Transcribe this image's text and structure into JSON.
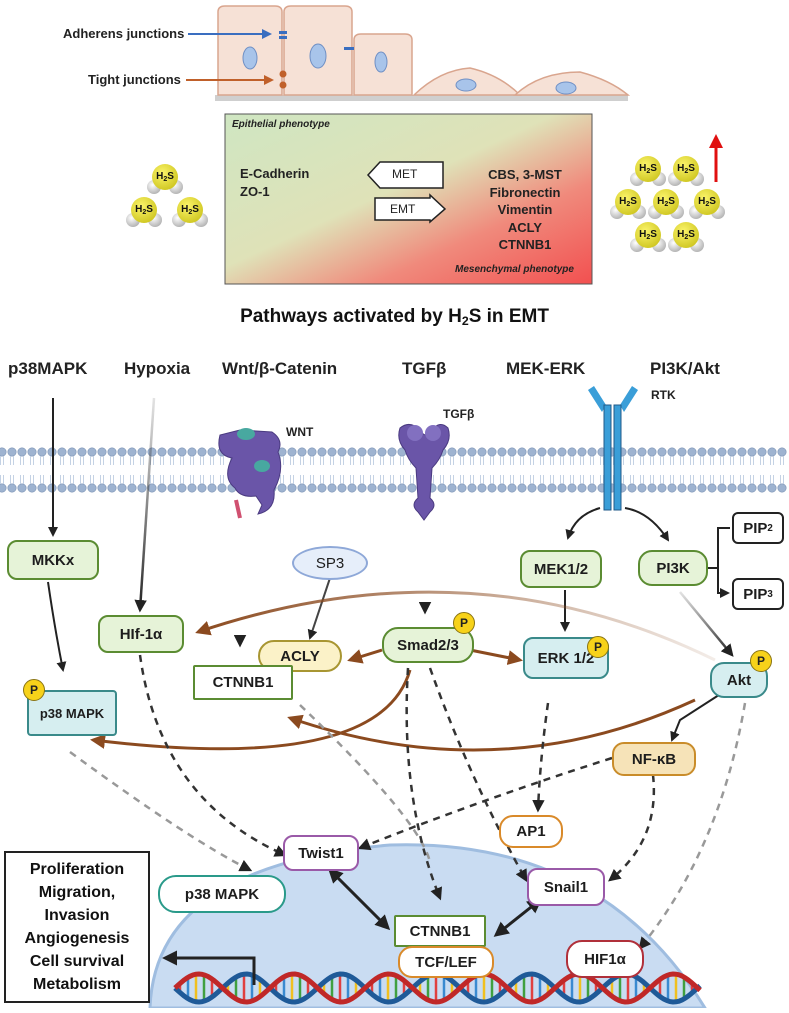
{
  "top_labels": {
    "adherens": "Adherens junctions",
    "tight": "Tight junctions"
  },
  "phenotype_box": {
    "epithelial": "Epithelial phenotype",
    "mesenchymal": "Mesenchymal phenotype",
    "epithelial_markers": [
      "E-Cadherin",
      "ZO-1"
    ],
    "mesenchymal_markers": [
      "CBS, 3-MST",
      "Fibronectin",
      "Vimentin",
      "ACLY",
      "CTNNB1"
    ],
    "met": "MET",
    "emt": "EMT"
  },
  "h2s_molecule": {
    "label_main": "H",
    "label_sub": "2",
    "label_end": "S"
  },
  "title": {
    "prefix": "Pathways activated by H",
    "sub": "2",
    "suffix": "S in EMT"
  },
  "pathways": [
    "p38MAPK",
    "Hypoxia",
    "Wnt/β-Catenin",
    "TGFβ",
    "MEK-ERK",
    "PI3K/Akt"
  ],
  "receptors": {
    "wnt": "WNT",
    "tgfb": "TGFβ",
    "rtk": "RTK"
  },
  "nodes": {
    "mkkx": "MKKx",
    "hif1a_cyto": "HIf-1α",
    "sp3": "SP3",
    "acly": "ACLY",
    "ctnnb1_cyto": "CTNNB1",
    "smad": "Smad2/3",
    "mek": "MEK1/2",
    "erk": "ERK 1/2",
    "pi3k": "PI3K",
    "pip2": "PIP",
    "pip2_sub": "2",
    "pip3": "PIP",
    "pip3_sub": "3",
    "akt": "Akt",
    "p38_cyto": "p38 MAPK",
    "nfkb": "NF-κB",
    "ap1": "AP1",
    "twist": "Twist1",
    "snail": "Snail1",
    "p38_nuc": "p38 MAPK",
    "ctnnb1_nuc": "CTNNB1",
    "tcf": "TCF/LEF",
    "hif1a_nuc": "HIF1α",
    "phospho": "P"
  },
  "outcomes": [
    "Proliferation",
    "Migration,",
    "Invasion",
    "Angiogenesis",
    "Cell survival",
    "Metabolism"
  ],
  "colors": {
    "brown_arrow": "#8b4a1f",
    "epithelial_green": "#cfe6c2",
    "mesenchymal_red": "#f25a5a",
    "nucleus": "#c9dcf2",
    "h2s_yellow": "#e8e11a"
  }
}
